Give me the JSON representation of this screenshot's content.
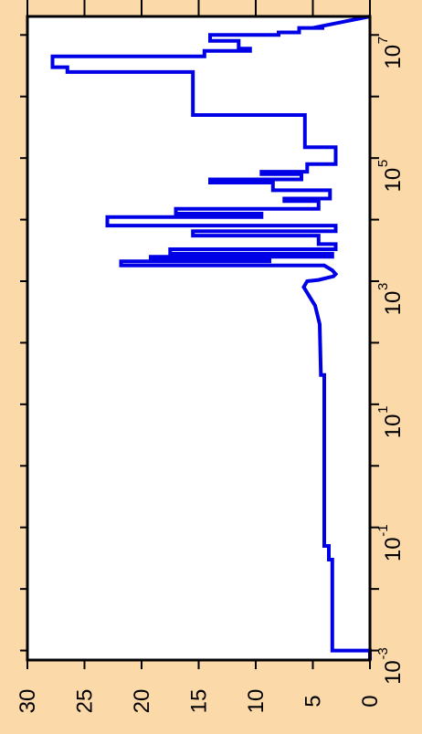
{
  "chart_data": {
    "type": "line",
    "orientation": "rotated-90",
    "line_color": "#0000E6",
    "background_color": "#FCD9A8",
    "plot_background_color": "#FFFFFF",
    "x_scale": "log10",
    "xlim": [
      0.0007,
      20000000
    ],
    "ylim": [
      0,
      30
    ],
    "x_ticks": [
      {
        "base": "10",
        "exp": "-3",
        "value": 0.001
      },
      {
        "base": "10",
        "exp": "-1",
        "value": 0.1
      },
      {
        "base": "10",
        "exp": "1",
        "value": 10
      },
      {
        "base": "10",
        "exp": "3",
        "value": 1000
      },
      {
        "base": "10",
        "exp": "5",
        "value": 100000
      },
      {
        "base": "10",
        "exp": "7",
        "value": 10000000
      }
    ],
    "x_minor_ticks": [
      0.01,
      1,
      100,
      10000,
      1000000
    ],
    "y_ticks": [
      "0",
      "5",
      "10",
      "15",
      "20",
      "25",
      "30"
    ],
    "grid": false,
    "legend": "none",
    "series": [
      {
        "x": [
          0.0007,
          0.001,
          0.001,
          0.03,
          0.03,
          0.05,
          0.05,
          30,
          30,
          200,
          400,
          800,
          1000,
          1050,
          1200,
          1300,
          1500,
          1800,
          1800,
          2100,
          2100,
          2300,
          2300,
          2500,
          2500,
          2800,
          2800,
          3300,
          3300,
          4000,
          4000,
          5500,
          5500,
          6500,
          6500,
          8000,
          8000,
          11000,
          11000,
          12500,
          12500,
          15000,
          15000,
          20000,
          20000,
          22000,
          22000,
          30000,
          30000,
          40000,
          40000,
          45000,
          45000,
          55000,
          55000,
          60000,
          60000,
          80000,
          80000,
          150000,
          150000,
          500000,
          500000,
          2500000,
          2500000,
          3000000,
          3000000,
          4500000,
          4500000,
          5500000,
          5500000,
          6000000,
          6000000,
          8000000,
          8000000,
          10000000,
          10000000,
          11000000,
          11000000,
          13000000,
          13000000,
          13000000,
          20000000
        ],
        "y": [
          0,
          0,
          3.3,
          3.3,
          3.6,
          3.6,
          4.0,
          4.0,
          4.3,
          4.4,
          4.8,
          5.8,
          5.5,
          4.5,
          3.2,
          3.0,
          3.3,
          4.0,
          21.8,
          21.8,
          8.8,
          8.8,
          19.2,
          19.2,
          3.3,
          3.3,
          17.5,
          17.5,
          3.0,
          3.0,
          4.5,
          4.5,
          15.5,
          15.5,
          3.0,
          3.0,
          23.0,
          23.0,
          9.5,
          9.5,
          17.0,
          17.0,
          4.5,
          4.5,
          7.5,
          7.5,
          3.5,
          3.5,
          8.5,
          8.5,
          14.0,
          14.0,
          6.0,
          6.0,
          9.5,
          9.5,
          5.5,
          5.5,
          3.0,
          3.0,
          5.7,
          5.7,
          15.5,
          15.5,
          26.5,
          26.5,
          27.8,
          27.8,
          14.5,
          14.5,
          10.5,
          10.5,
          11.5,
          11.5,
          14.0,
          14.0,
          8.0,
          8.0,
          6.2,
          6.2,
          4.0,
          5.0,
          0
        ]
      }
    ]
  }
}
